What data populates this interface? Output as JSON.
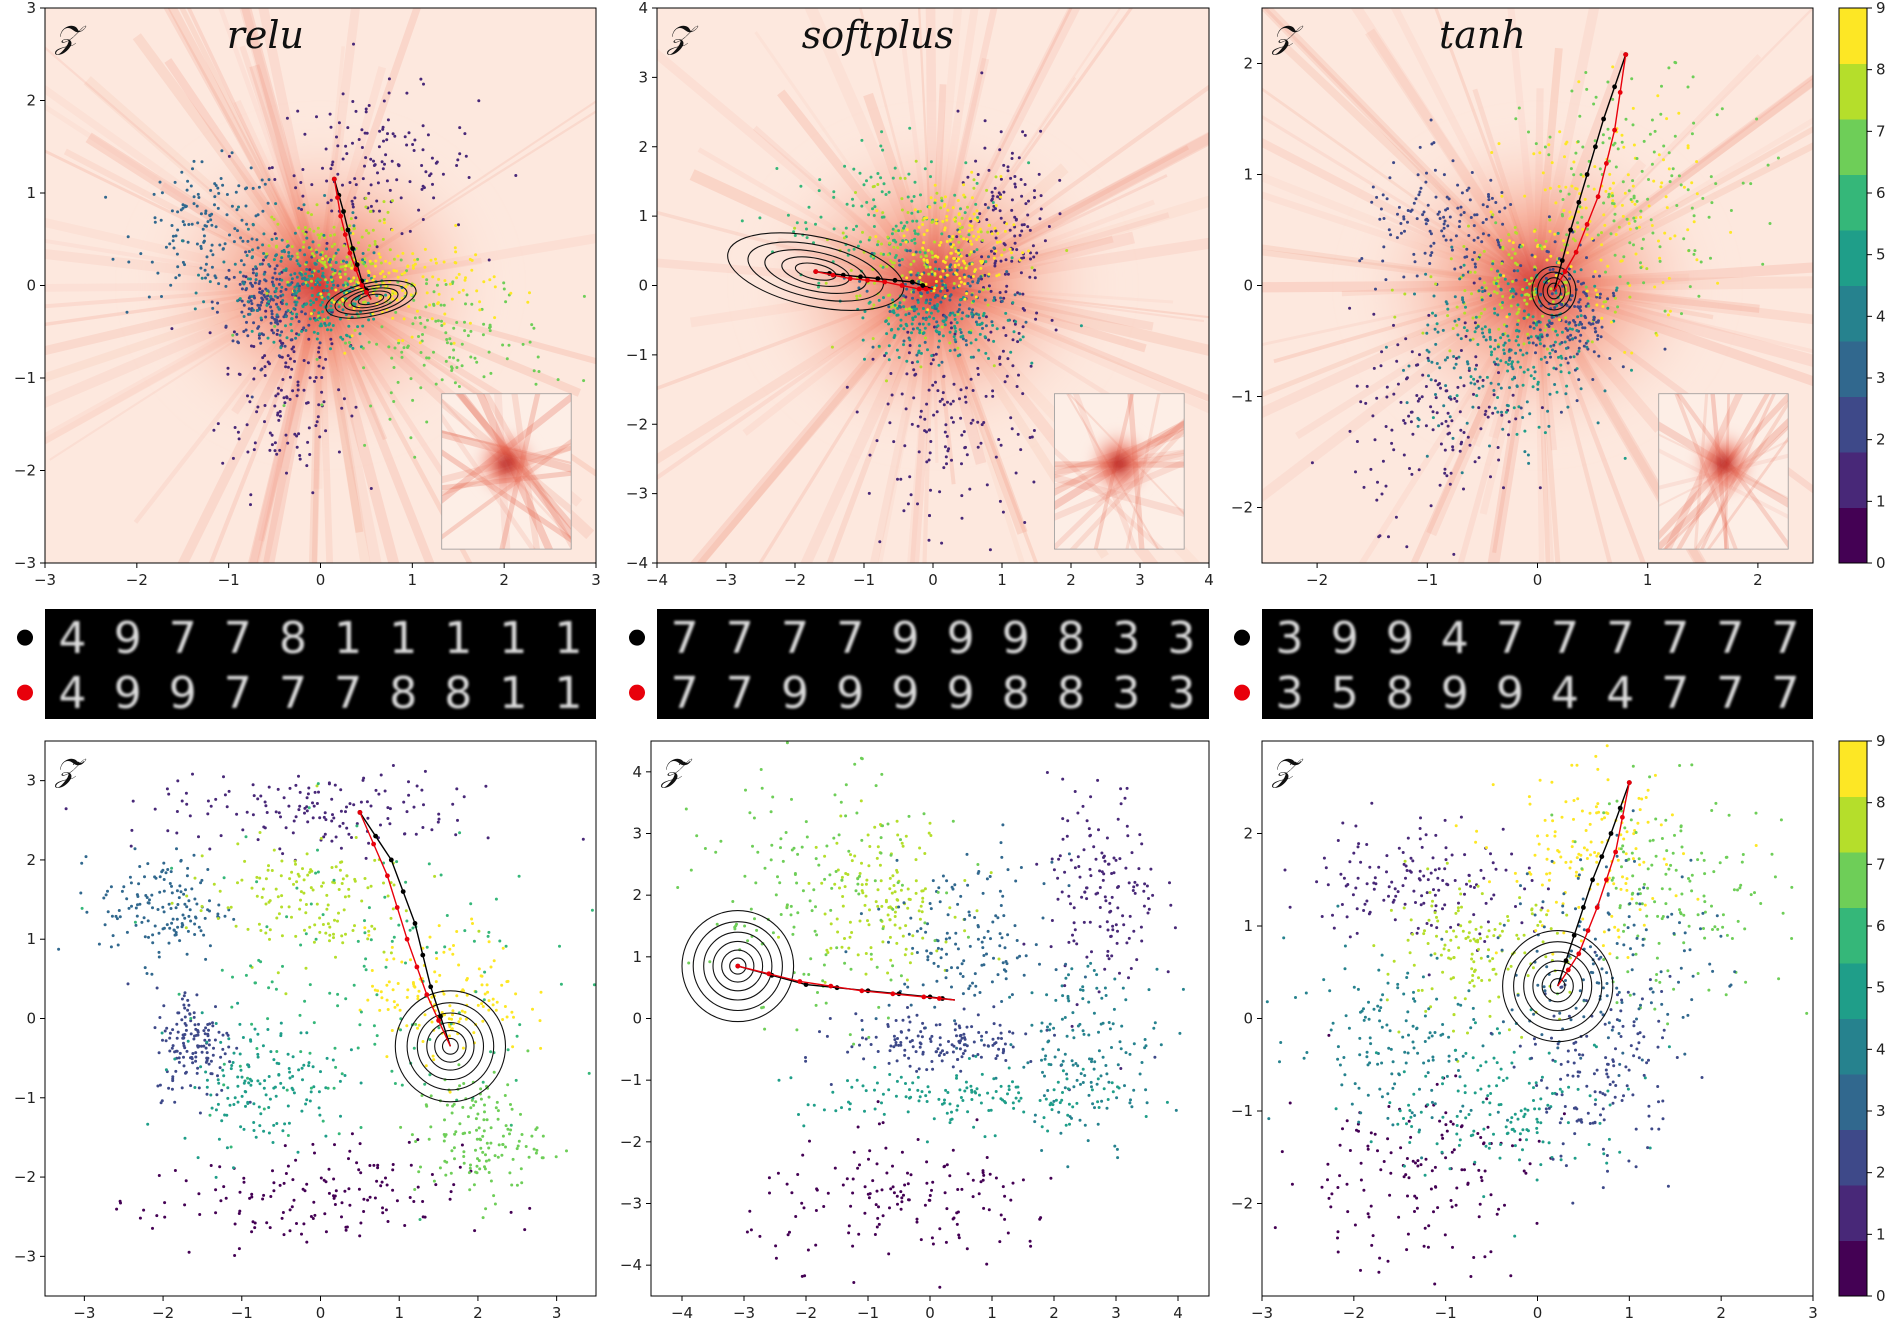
{
  "colors": {
    "viridis": [
      "#440154",
      "#482878",
      "#3e4989",
      "#31688e",
      "#26828e",
      "#1f9e89",
      "#35b779",
      "#6ece58",
      "#b5de2b",
      "#fde725"
    ],
    "path_start": "#000000",
    "path_end": "#e8000b",
    "heat_base": "#fde8de",
    "heat_peak": "#b8000f"
  },
  "chart_data": [
    {
      "id": "top-relu",
      "type": "scatter",
      "subtitle": "relu",
      "space_label": "𝒵",
      "xlim": [
        -3,
        3
      ],
      "ylim": [
        -3,
        3
      ],
      "xticks": [
        -3,
        -2,
        -1,
        0,
        1,
        2,
        3
      ],
      "yticks": [
        -3,
        -2,
        -1,
        0,
        1,
        2,
        3
      ],
      "heatmap_background": true,
      "inset": true,
      "grid": false,
      "clusters": [
        {
          "digit": 1,
          "center": [
            -0.4,
            -1.1
          ],
          "spread": [
            0.35,
            0.55
          ]
        },
        {
          "digit": 1,
          "center": [
            0.6,
            1.3
          ],
          "spread": [
            0.55,
            0.4
          ]
        },
        {
          "digit": 3,
          "center": [
            -1.2,
            0.6
          ],
          "spread": [
            0.4,
            0.35
          ]
        },
        {
          "digit": 2,
          "center": [
            -0.6,
            -0.2
          ],
          "spread": [
            0.25,
            0.25
          ]
        },
        {
          "digit": 5,
          "center": [
            0.0,
            -0.2
          ],
          "spread": [
            0.3,
            0.25
          ]
        },
        {
          "digit": 8,
          "center": [
            0.2,
            0.3
          ],
          "spread": [
            0.35,
            0.3
          ]
        },
        {
          "digit": 7,
          "center": [
            1.3,
            -0.6
          ],
          "spread": [
            0.6,
            0.4
          ]
        },
        {
          "digit": 9,
          "center": [
            0.9,
            0.0
          ],
          "spread": [
            0.5,
            0.25
          ]
        },
        {
          "digit": 4,
          "center": [
            -0.3,
            0.1
          ],
          "spread": [
            0.4,
            0.3
          ]
        }
      ],
      "path_black": [
        [
          0.15,
          1.15
        ],
        [
          0.25,
          0.8
        ],
        [
          0.35,
          0.4
        ],
        [
          0.45,
          0.05
        ],
        [
          0.55,
          -0.15
        ]
      ],
      "path_red": [
        [
          0.15,
          1.15
        ],
        [
          0.22,
          0.75
        ],
        [
          0.32,
          0.35
        ],
        [
          0.45,
          0.0
        ],
        [
          0.55,
          -0.15
        ]
      ],
      "contour_center": [
        0.55,
        -0.15
      ],
      "contour_radii": [
        [
          0.5,
          0.18
        ],
        [
          0.4,
          0.14
        ],
        [
          0.3,
          0.11
        ],
        [
          0.22,
          0.08
        ],
        [
          0.14,
          0.05
        ]
      ]
    },
    {
      "id": "top-softplus",
      "type": "scatter",
      "subtitle": "softplus",
      "space_label": "𝒵",
      "xlim": [
        -4,
        4
      ],
      "ylim": [
        -4,
        4
      ],
      "xticks": [
        -4,
        -3,
        -2,
        -1,
        0,
        1,
        2,
        3,
        4
      ],
      "yticks": [
        -4,
        -3,
        -2,
        -1,
        0,
        1,
        2,
        3,
        4
      ],
      "heatmap_background": true,
      "inset": true,
      "grid": false,
      "clusters": [
        {
          "digit": 1,
          "center": [
            0.2,
            -2.0
          ],
          "spread": [
            0.6,
            0.7
          ]
        },
        {
          "digit": 1,
          "center": [
            1.1,
            0.8
          ],
          "spread": [
            0.35,
            0.8
          ]
        },
        {
          "digit": 6,
          "center": [
            -0.6,
            0.9
          ],
          "spread": [
            0.8,
            0.5
          ]
        },
        {
          "digit": 8,
          "center": [
            -0.2,
            0.3
          ],
          "spread": [
            0.6,
            0.6
          ]
        },
        {
          "digit": 3,
          "center": [
            0.2,
            -0.2
          ],
          "spread": [
            0.5,
            0.4
          ]
        },
        {
          "digit": 5,
          "center": [
            0.0,
            -0.6
          ],
          "spread": [
            0.6,
            0.25
          ]
        },
        {
          "digit": 9,
          "center": [
            0.4,
            0.6
          ],
          "spread": [
            0.4,
            0.4
          ]
        }
      ],
      "path_black": [
        [
          -1.7,
          0.2
        ],
        [
          -1.3,
          0.15
        ],
        [
          -0.8,
          0.1
        ],
        [
          -0.3,
          0.05
        ],
        [
          0.0,
          -0.05
        ]
      ],
      "path_red": [
        [
          -1.7,
          0.2
        ],
        [
          -1.2,
          0.1
        ],
        [
          -0.7,
          0.05
        ],
        [
          -0.2,
          -0.05
        ],
        [
          0.0,
          -0.05
        ]
      ],
      "contour_center": [
        -1.7,
        0.2
      ],
      "contour_radii": [
        [
          1.3,
          0.5
        ],
        [
          1.0,
          0.38
        ],
        [
          0.75,
          0.28
        ],
        [
          0.5,
          0.19
        ],
        [
          0.3,
          0.11
        ]
      ]
    },
    {
      "id": "top-tanh",
      "type": "scatter",
      "subtitle": "tanh",
      "space_label": "𝒵",
      "xlim": [
        -2.5,
        2.5
      ],
      "ylim": [
        -2.5,
        2.5
      ],
      "xticks": [
        -2,
        -1,
        0,
        1,
        2
      ],
      "yticks": [
        -2,
        -1,
        0,
        1,
        2
      ],
      "heatmap_background": true,
      "inset": true,
      "grid": false,
      "clusters": [
        {
          "digit": 1,
          "center": [
            -0.9,
            -1.2
          ],
          "spread": [
            0.4,
            0.45
          ]
        },
        {
          "digit": 2,
          "center": [
            -0.8,
            0.5
          ],
          "spread": [
            0.4,
            0.3
          ]
        },
        {
          "digit": 8,
          "center": [
            -0.2,
            0.0
          ],
          "spread": [
            0.4,
            0.25
          ]
        },
        {
          "digit": 5,
          "center": [
            -0.1,
            -0.5
          ],
          "spread": [
            0.35,
            0.35
          ]
        },
        {
          "digit": 2,
          "center": [
            0.3,
            -0.3
          ],
          "spread": [
            0.2,
            0.3
          ]
        },
        {
          "digit": 9,
          "center": [
            0.6,
            0.6
          ],
          "spread": [
            0.45,
            0.5
          ]
        },
        {
          "digit": 7,
          "center": [
            0.9,
            0.9
          ],
          "spread": [
            0.5,
            0.5
          ]
        },
        {
          "digit": 4,
          "center": [
            -0.4,
            -0.6
          ],
          "spread": [
            0.45,
            0.4
          ]
        }
      ],
      "path_black": [
        [
          0.8,
          2.08
        ],
        [
          0.6,
          1.5
        ],
        [
          0.45,
          1.0
        ],
        [
          0.3,
          0.5
        ],
        [
          0.15,
          -0.05
        ]
      ],
      "path_red": [
        [
          0.8,
          2.08
        ],
        [
          0.7,
          1.4
        ],
        [
          0.55,
          0.8
        ],
        [
          0.35,
          0.3
        ],
        [
          0.15,
          -0.05
        ]
      ],
      "contour_center": [
        0.15,
        -0.05
      ],
      "contour_radii": [
        [
          0.2,
          0.22
        ],
        [
          0.15,
          0.17
        ],
        [
          0.1,
          0.12
        ],
        [
          0.06,
          0.07
        ]
      ]
    },
    {
      "id": "bottom-relu",
      "type": "scatter",
      "space_label": "𝒵̃",
      "xlim": [
        -3.5,
        3.5
      ],
      "ylim": [
        -3.5,
        3.5
      ],
      "xticks": [
        -3,
        -2,
        -1,
        0,
        1,
        2,
        3
      ],
      "yticks": [
        -3,
        -2,
        -1,
        0,
        1,
        2,
        3
      ],
      "heatmap_background": false,
      "inset": false,
      "grid": false,
      "clusters": [
        {
          "digit": 1,
          "center": [
            0.0,
            2.6
          ],
          "spread": [
            1.1,
            0.25
          ]
        },
        {
          "digit": 0,
          "center": [
            -0.2,
            -2.3
          ],
          "spread": [
            1.0,
            0.35
          ]
        },
        {
          "digit": 3,
          "center": [
            -2.0,
            1.4
          ],
          "spread": [
            0.4,
            0.35
          ]
        },
        {
          "digit": 2,
          "center": [
            -1.6,
            -0.3
          ],
          "spread": [
            0.25,
            0.35
          ]
        },
        {
          "digit": 5,
          "center": [
            -0.8,
            -0.8
          ],
          "spread": [
            0.5,
            0.4
          ]
        },
        {
          "digit": 7,
          "center": [
            2.0,
            -1.5
          ],
          "spread": [
            0.4,
            0.4
          ]
        },
        {
          "digit": 8,
          "center": [
            -0.3,
            1.5
          ],
          "spread": [
            0.7,
            0.4
          ]
        },
        {
          "digit": 9,
          "center": [
            1.6,
            0.3
          ],
          "spread": [
            0.5,
            0.4
          ]
        },
        {
          "digit": 6,
          "center": [
            0.5,
            0.5
          ],
          "spread": [
            1.2,
            1.0
          ]
        }
      ],
      "path_black": [
        [
          0.5,
          2.6
        ],
        [
          0.9,
          2.0
        ],
        [
          1.2,
          1.2
        ],
        [
          1.4,
          0.4
        ],
        [
          1.65,
          -0.35
        ]
      ],
      "path_red": [
        [
          0.5,
          2.6
        ],
        [
          0.85,
          1.8
        ],
        [
          1.1,
          1.0
        ],
        [
          1.35,
          0.3
        ],
        [
          1.65,
          -0.35
        ]
      ],
      "contour_center": [
        1.65,
        -0.35
      ],
      "contour_radii": [
        [
          0.7,
          0.7
        ],
        [
          0.55,
          0.55
        ],
        [
          0.42,
          0.42
        ],
        [
          0.3,
          0.3
        ],
        [
          0.2,
          0.2
        ],
        [
          0.1,
          0.1
        ]
      ]
    },
    {
      "id": "bottom-softplus",
      "type": "scatter",
      "space_label": "𝒵̃",
      "xlim": [
        -4.5,
        4.5
      ],
      "ylim": [
        -4.5,
        4.5
      ],
      "xticks": [
        -4,
        -3,
        -2,
        -1,
        0,
        1,
        2,
        3,
        4
      ],
      "yticks": [
        -4,
        -3,
        -2,
        -1,
        0,
        1,
        2,
        3,
        4
      ],
      "heatmap_background": false,
      "inset": false,
      "grid": false,
      "clusters": [
        {
          "digit": 1,
          "center": [
            2.8,
            2.0
          ],
          "spread": [
            0.45,
            0.9
          ]
        },
        {
          "digit": 0,
          "center": [
            -0.3,
            -3.0
          ],
          "spread": [
            1.3,
            0.5
          ]
        },
        {
          "digit": 8,
          "center": [
            -0.8,
            2.0
          ],
          "spread": [
            0.6,
            0.6
          ]
        },
        {
          "digit": 3,
          "center": [
            0.6,
            1.2
          ],
          "spread": [
            0.7,
            0.7
          ]
        },
        {
          "digit": 2,
          "center": [
            0.2,
            -0.4
          ],
          "spread": [
            0.8,
            0.25
          ]
        },
        {
          "digit": 5,
          "center": [
            0.5,
            -1.3
          ],
          "spread": [
            1.3,
            0.25
          ]
        },
        {
          "digit": 7,
          "center": [
            -1.8,
            2.0
          ],
          "spread": [
            1.0,
            1.0
          ]
        },
        {
          "digit": 4,
          "center": [
            2.6,
            -0.5
          ],
          "spread": [
            0.6,
            0.7
          ]
        }
      ],
      "path_black": [
        [
          -3.1,
          0.85
        ],
        [
          -2.0,
          0.55
        ],
        [
          -1.0,
          0.45
        ],
        [
          0.0,
          0.35
        ],
        [
          0.4,
          0.3
        ]
      ],
      "path_red": [
        [
          -3.1,
          0.85
        ],
        [
          -2.1,
          0.6
        ],
        [
          -1.1,
          0.45
        ],
        [
          -0.1,
          0.35
        ],
        [
          0.4,
          0.3
        ]
      ],
      "contour_center": [
        -3.1,
        0.85
      ],
      "contour_radii": [
        [
          0.9,
          0.9
        ],
        [
          0.72,
          0.72
        ],
        [
          0.55,
          0.55
        ],
        [
          0.4,
          0.4
        ],
        [
          0.26,
          0.26
        ],
        [
          0.13,
          0.13
        ]
      ]
    },
    {
      "id": "bottom-tanh",
      "type": "scatter",
      "space_label": "𝒵̃",
      "xlim": [
        -3,
        3
      ],
      "ylim": [
        -3,
        3
      ],
      "xticks": [
        -3,
        -2,
        -1,
        0,
        1,
        2,
        3
      ],
      "yticks": [
        -2,
        -1,
        0,
        1,
        2
      ],
      "heatmap_background": false,
      "inset": false,
      "grid": false,
      "clusters": [
        {
          "digit": 1,
          "center": [
            -1.3,
            1.5
          ],
          "spread": [
            0.6,
            0.35
          ]
        },
        {
          "digit": 0,
          "center": [
            -1.4,
            -1.7
          ],
          "spread": [
            0.7,
            0.5
          ]
        },
        {
          "digit": 8,
          "center": [
            -0.7,
            0.7
          ],
          "spread": [
            0.5,
            0.35
          ]
        },
        {
          "digit": 4,
          "center": [
            -1.5,
            -0.2
          ],
          "spread": [
            0.6,
            0.5
          ]
        },
        {
          "digit": 5,
          "center": [
            -0.3,
            -1.0
          ],
          "spread": [
            0.7,
            0.4
          ]
        },
        {
          "digit": 2,
          "center": [
            0.7,
            -0.6
          ],
          "spread": [
            0.4,
            0.5
          ]
        },
        {
          "digit": 9,
          "center": [
            0.6,
            1.7
          ],
          "spread": [
            0.5,
            0.5
          ]
        },
        {
          "digit": 7,
          "center": [
            1.5,
            1.3
          ],
          "spread": [
            0.6,
            0.6
          ]
        },
        {
          "digit": 3,
          "center": [
            0.8,
            0.7
          ],
          "spread": [
            0.6,
            0.6
          ]
        }
      ],
      "path_black": [
        [
          1.0,
          2.55
        ],
        [
          0.8,
          2.0
        ],
        [
          0.6,
          1.5
        ],
        [
          0.4,
          0.9
        ],
        [
          0.22,
          0.35
        ]
      ],
      "path_red": [
        [
          1.0,
          2.55
        ],
        [
          0.85,
          1.8
        ],
        [
          0.65,
          1.2
        ],
        [
          0.45,
          0.7
        ],
        [
          0.22,
          0.35
        ]
      ],
      "contour_center": [
        0.22,
        0.35
      ],
      "contour_radii": [
        [
          0.6,
          0.6
        ],
        [
          0.48,
          0.48
        ],
        [
          0.37,
          0.37
        ],
        [
          0.27,
          0.27
        ],
        [
          0.17,
          0.17
        ],
        [
          0.08,
          0.08
        ]
      ]
    }
  ],
  "colorbars": [
    {
      "id": "colorbar-top",
      "ticks": [
        "0",
        "1",
        "2",
        "3",
        "4",
        "5",
        "6",
        "7",
        "8",
        "9"
      ]
    },
    {
      "id": "colorbar-bottom",
      "ticks": [
        "0",
        "1",
        "2",
        "3",
        "4",
        "5",
        "6",
        "7",
        "8",
        "9"
      ]
    }
  ],
  "digit_strips": [
    {
      "id": "strip-relu",
      "black_row": [
        "4",
        "9",
        "7",
        "7",
        "8",
        "1",
        "1",
        "1",
        "1",
        "1"
      ],
      "red_row": [
        "4",
        "9",
        "9",
        "7",
        "7",
        "7",
        "8",
        "8",
        "1",
        "1"
      ]
    },
    {
      "id": "strip-softplus",
      "black_row": [
        "7",
        "7",
        "7",
        "7",
        "9",
        "9",
        "9",
        "8",
        "3",
        "3"
      ],
      "red_row": [
        "7",
        "7",
        "9",
        "9",
        "9",
        "9",
        "8",
        "8",
        "3",
        "3"
      ]
    },
    {
      "id": "strip-tanh",
      "black_row": [
        "3",
        "9",
        "9",
        "4",
        "7",
        "7",
        "7",
        "7",
        "7",
        "7"
      ],
      "red_row": [
        "3",
        "5",
        "8",
        "9",
        "9",
        "4",
        "4",
        "7",
        "7",
        "7"
      ]
    }
  ]
}
